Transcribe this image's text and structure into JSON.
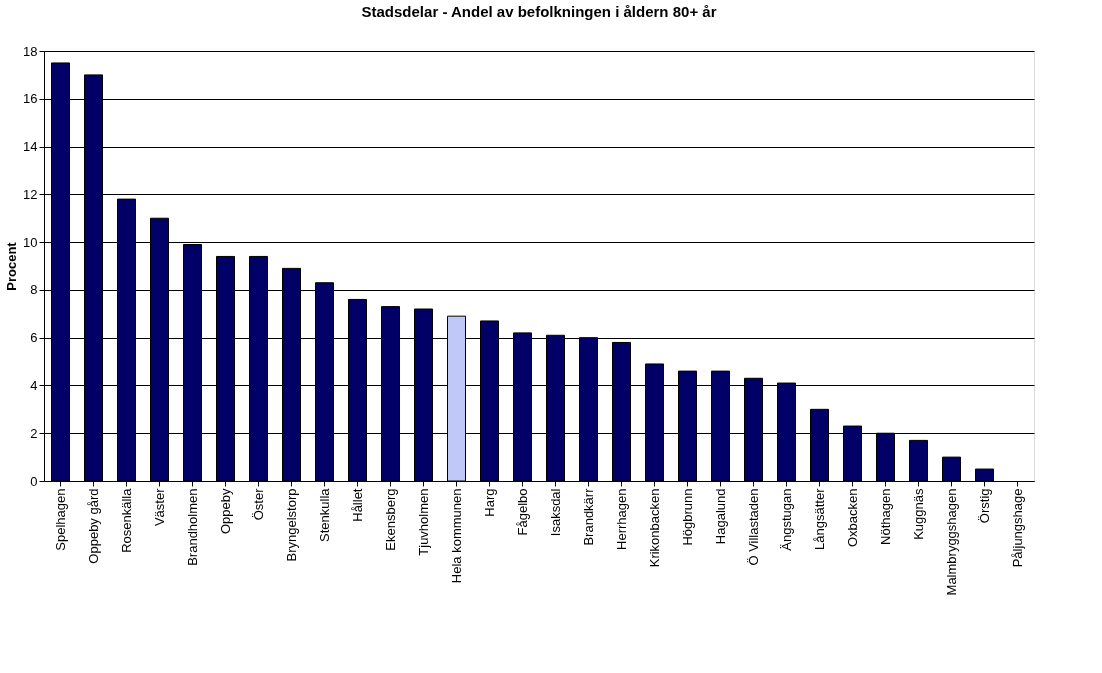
{
  "chart_data": {
    "type": "bar",
    "title": "Stadsdelar - Andel av befolkningen i åldern 80+ år",
    "ylabel": "Procent",
    "categories": [
      "Spelhagen",
      "Oppeby gård",
      "Rosenkälla",
      "Väster",
      "Brandholmen",
      "Oppeby",
      "Öster",
      "Bryngelstorp",
      "Stenkulla",
      "Hållet",
      "Ekensberg",
      "Tjuvholmen",
      "Hela kommunen",
      "Harg",
      "Fågelbo",
      "Isaksdal",
      "Brandkärr",
      "Herrhagen",
      "Krikonbacken",
      "Högbrunn",
      "Hagalund",
      "Ö Villastaden",
      "Ängstugan",
      "Långsätter",
      "Oxbacken",
      "Nöthagen",
      "Kuggnäs",
      "Malmbryggshagen",
      "Örstig",
      "Påljungshage"
    ],
    "values": [
      17.5,
      17.0,
      11.8,
      11.0,
      9.9,
      9.4,
      9.4,
      8.9,
      8.3,
      7.6,
      7.3,
      7.2,
      6.9,
      6.7,
      6.2,
      6.1,
      6.0,
      5.8,
      4.9,
      4.6,
      4.6,
      4.3,
      4.1,
      3.0,
      2.3,
      2.0,
      1.7,
      1.0,
      0.5,
      0
    ],
    "colors": [
      "#000066",
      "#000066",
      "#000066",
      "#000066",
      "#000066",
      "#000066",
      "#000066",
      "#000066",
      "#000066",
      "#000066",
      "#000066",
      "#000066",
      "#c0c8f8",
      "#000066",
      "#000066",
      "#000066",
      "#000066",
      "#000066",
      "#000066",
      "#000066",
      "#000066",
      "#000066",
      "#000066",
      "#000066",
      "#000066",
      "#000066",
      "#000066",
      "#000066",
      "#000066",
      "#000066"
    ],
    "ylim": [
      0,
      18
    ],
    "yticks": [
      0,
      2,
      4,
      6,
      8,
      10,
      12,
      14,
      16,
      18
    ],
    "grid": "y"
  }
}
